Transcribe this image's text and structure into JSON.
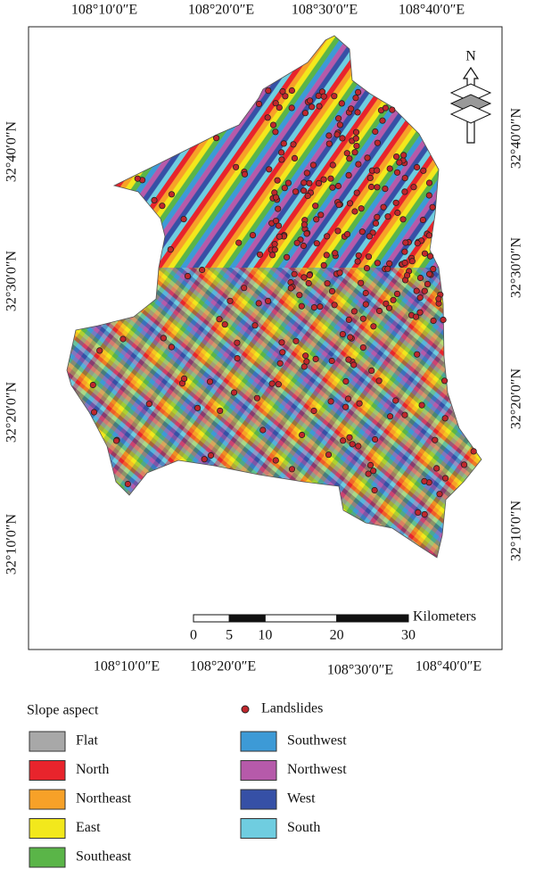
{
  "map": {
    "top_labels": [
      "108°10′0″E",
      "108°20′0″E",
      "108°30′0″E",
      "108°40′0″E"
    ],
    "bottom_labels": [
      "108°10′0″E",
      "108°20′0″E",
      "108°30′0″E",
      "108°40′0″E"
    ],
    "left_labels": [
      "32°40′0″N",
      "32°30′0″N",
      "32°20′0″N",
      "32°10′0″N"
    ],
    "right_labels": [
      "32°40′0″N",
      "32°30′0″N",
      "32°20′0″N",
      "32°10′0″N"
    ],
    "north_arrow": "N",
    "scale_bar": {
      "unit": "Kilometers",
      "ticks": [
        0,
        5,
        10,
        20,
        30
      ]
    }
  },
  "legend": {
    "title": "Slope aspect",
    "landslides": "Landslides",
    "landslide_color": "#c0272d",
    "classes": [
      {
        "label": "Flat",
        "color": "#a8a8a8"
      },
      {
        "label": "North",
        "color": "#e8242c"
      },
      {
        "label": "Northeast",
        "color": "#f7a128"
      },
      {
        "label": "East",
        "color": "#f2e81c"
      },
      {
        "label": "Southeast",
        "color": "#5ab548"
      },
      {
        "label": "Southwest",
        "color": "#3d9ad6"
      },
      {
        "label": "Northwest",
        "color": "#b65aaa"
      },
      {
        "label": "West",
        "color": "#3650a6"
      },
      {
        "label": "South",
        "color": "#6fcde0"
      }
    ]
  }
}
